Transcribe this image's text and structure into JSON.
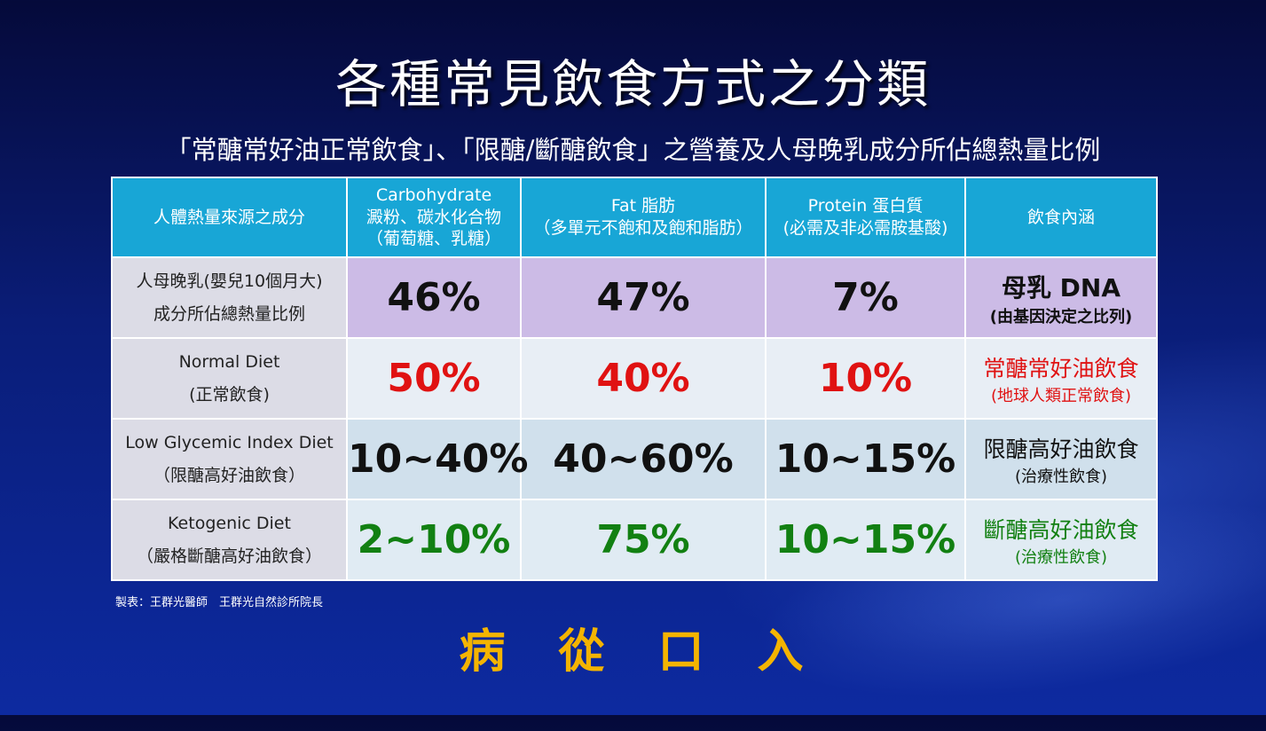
{
  "title": "各種常見飲食方式之分類",
  "subtitle": "「常醣常好油正常飲食」、「限醣/斷醣飲食」之營養及人母晚乳成分所佔總熱量比例",
  "table": {
    "headers": [
      {
        "line1": "人體熱量來源之成分",
        "line2": "",
        "line3": ""
      },
      {
        "line1": "Carbohydrate",
        "line2": "澱粉、碳水化合物",
        "line3": "（葡萄糖、乳糖）"
      },
      {
        "line1": "Fat 脂肪",
        "line2": "（多單元不飽和及飽和脂肪）",
        "line3": ""
      },
      {
        "line1": "Protein 蛋白質",
        "line2": "(必需及非必需胺基酸)",
        "line3": ""
      },
      {
        "line1": "飲食內涵",
        "line2": "",
        "line3": ""
      }
    ],
    "rows": [
      {
        "label1": "人母晚乳(嬰兒10個月大)",
        "label2": "成分所佔總熱量比例",
        "carb": "46%",
        "fat": "47%",
        "protein": "7%",
        "note1": "母乳 DNA",
        "note2": "(由基因決定之比列)",
        "value_color": "#111111",
        "note_color": "#111111"
      },
      {
        "label1": "Normal Diet",
        "label2": "(正常飲食)",
        "carb": "50%",
        "fat": "40%",
        "protein": "10%",
        "note1": "常醣常好油飲食",
        "note2": "(地球人類正常飲食)",
        "value_color": "#e01212",
        "note_color": "#e01212"
      },
      {
        "label1": "Low Glycemic Index Diet",
        "label2": "（限醣高好油飲食）",
        "carb": "10~40%",
        "fat": "40~60%",
        "protein": "10~15%",
        "note1": "限醣高好油飲食",
        "note2": "(治療性飲食)",
        "value_color": "#111111",
        "note_color": "#111111"
      },
      {
        "label1": "Ketogenic Diet",
        "label2": "（嚴格斷醣高好油飲食）",
        "carb": "2~10%",
        "fat": "75%",
        "protein": "10~15%",
        "note1": "斷醣高好油飲食",
        "note2": "(治療性飲食)",
        "value_color": "#128012",
        "note_color": "#128012"
      }
    ]
  },
  "credit": "製表：王群光醫師　王群光自然診所院長",
  "slogan": "病　從　口　入"
}
